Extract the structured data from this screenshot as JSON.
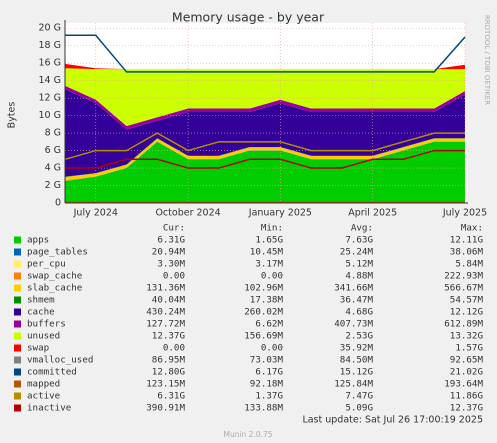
{
  "chart_data": {
    "type": "area",
    "title": "Memory usage - by year",
    "ylabel": "Bytes",
    "watermark": "RRDTOOL / TOBI OETIKER",
    "categories": [
      null,
      "July 2024",
      null,
      null,
      "October 2024",
      null,
      null,
      "January 2025",
      null,
      null,
      "April 2025",
      null,
      null,
      "July 2025"
    ],
    "ylim": [
      0,
      20.6
    ],
    "yticks": [
      0,
      {
        "value": 2,
        "label": "2 G"
      },
      {
        "value": 4,
        "label": "4 G"
      },
      {
        "value": 6,
        "label": "6 G"
      },
      {
        "value": 8,
        "label": "8 G"
      },
      {
        "value": 10,
        "label": "10 G"
      },
      {
        "value": 12,
        "label": "12 G"
      },
      {
        "value": 14,
        "label": "14 G"
      },
      {
        "value": 16,
        "label": "16 G"
      },
      {
        "value": 18,
        "label": "18 G"
      },
      {
        "value": 20,
        "label": "20 G"
      }
    ],
    "grid": true,
    "legend_columns": [
      "Cur:",
      "Min:",
      "Avg:",
      "Max:"
    ],
    "series": [
      {
        "name": "apps",
        "color": "#00cc00",
        "style": "area",
        "values": [
          2.5,
          3,
          4,
          7,
          5,
          5,
          6,
          6,
          5,
          5,
          5,
          6,
          7,
          7
        ],
        "stats": [
          "6.31G",
          "1.65G",
          "7.63G",
          "12.11G"
        ]
      },
      {
        "name": "page_tables",
        "color": "#0066b3",
        "style": "area",
        "values": [
          0.02,
          0.02,
          0.02,
          0.02,
          0.02,
          0.02,
          0.02,
          0.02,
          0.02,
          0.02,
          0.02,
          0.02,
          0.02,
          0.02
        ],
        "stats": [
          "20.94M",
          "10.45M",
          "25.24M",
          "38.06M"
        ]
      },
      {
        "name": "per_cpu",
        "color": "#ffee66",
        "style": "area",
        "values": [
          0.005,
          0.005,
          0.005,
          0.005,
          0.005,
          0.005,
          0.005,
          0.005,
          0.005,
          0.005,
          0.005,
          0.005,
          0.005,
          0.005
        ],
        "stats": [
          "3.30M",
          "3.17M",
          "5.12M",
          "5.84M"
        ]
      },
      {
        "name": "swap_cache",
        "color": "#ff8000",
        "style": "area",
        "values": [
          0.1,
          0.01,
          0,
          0,
          0,
          0,
          0,
          0,
          0,
          0,
          0,
          0,
          0,
          0
        ],
        "stats": [
          "0.00",
          "0.00",
          "4.88M",
          "222.93M"
        ]
      },
      {
        "name": "slab_cache",
        "color": "#ffcc00",
        "style": "area",
        "values": [
          0.35,
          0.35,
          0.35,
          0.35,
          0.35,
          0.35,
          0.35,
          0.35,
          0.35,
          0.35,
          0.35,
          0.35,
          0.35,
          0.35
        ],
        "stats": [
          "131.36M",
          "102.96M",
          "341.66M",
          "566.67M"
        ]
      },
      {
        "name": "shmem",
        "color": "#008f00",
        "style": "area",
        "values": [
          0.04,
          0.04,
          0.04,
          0.04,
          0.04,
          0.04,
          0.04,
          0.04,
          0.04,
          0.04,
          0.04,
          0.04,
          0.04,
          0.04
        ],
        "stats": [
          "40.04M",
          "17.38M",
          "36.47M",
          "54.57M"
        ]
      },
      {
        "name": "cache",
        "color": "#330099",
        "style": "area",
        "values": [
          10,
          8,
          4,
          2,
          5,
          5,
          4,
          5,
          5,
          5,
          5,
          4,
          3,
          5
        ],
        "stats": [
          "430.24M",
          "260.02M",
          "4.68G",
          "12.12G"
        ]
      },
      {
        "name": "buffers",
        "color": "#990099",
        "style": "area",
        "values": [
          0.4,
          0.4,
          0.4,
          0.4,
          0.4,
          0.4,
          0.4,
          0.4,
          0.4,
          0.4,
          0.4,
          0.4,
          0.4,
          0.4
        ],
        "stats": [
          "127.72M",
          "6.62M",
          "407.73M",
          "612.89M"
        ]
      },
      {
        "name": "unused",
        "color": "#ccff00",
        "style": "area",
        "values": [
          2,
          3.5,
          6.5,
          5.5,
          4.5,
          4.5,
          4.5,
          3.5,
          4.5,
          4.5,
          4.5,
          4.5,
          4.5,
          2.5
        ],
        "stats": [
          "12.37G",
          "156.69M",
          "2.53G",
          "13.32G"
        ]
      },
      {
        "name": "swap",
        "color": "#ff0000",
        "style": "area",
        "values": [
          0.5,
          0.1,
          0,
          0,
          0,
          0,
          0,
          0,
          0,
          0,
          0,
          0,
          0,
          0.5
        ],
        "stats": [
          "0.00",
          "0.00",
          "35.92M",
          "1.57G"
        ]
      },
      {
        "name": "vmalloc_used",
        "color": "#808080",
        "style": "line",
        "values": [
          0.085,
          0.085,
          0.085,
          0.085,
          0.085,
          0.085,
          0.085,
          0.085,
          0.085,
          0.085,
          0.085,
          0.085,
          0.085,
          0.085
        ],
        "stats": [
          "86.95M",
          "73.03M",
          "84.50M",
          "92.65M"
        ]
      },
      {
        "name": "committed",
        "color": "#00487d",
        "style": "line",
        "values": [
          19.2,
          19.2,
          15,
          15,
          15,
          15,
          15,
          15,
          15,
          15,
          15,
          15,
          15,
          19
        ],
        "stats": [
          "12.80G",
          "6.17G",
          "15.12G",
          "21.02G"
        ]
      },
      {
        "name": "mapped",
        "color": "#b35a00",
        "style": "line",
        "values": [
          0.12,
          0.12,
          0.12,
          0.12,
          0.12,
          0.12,
          0.12,
          0.12,
          0.12,
          0.12,
          0.12,
          0.12,
          0.12,
          0.12
        ],
        "stats": [
          "123.15M",
          "92.18M",
          "125.84M",
          "193.64M"
        ]
      },
      {
        "name": "active",
        "color": "#b38f00",
        "style": "line",
        "values": [
          5,
          6,
          6,
          8,
          6,
          7,
          7,
          7,
          6,
          6,
          6,
          7,
          8,
          8
        ],
        "stats": [
          "6.31G",
          "1.37G",
          "7.47G",
          "11.86G"
        ]
      },
      {
        "name": "inactive",
        "color": "#b30000",
        "style": "line",
        "values": [
          4,
          4,
          5,
          5,
          4,
          4,
          5,
          5,
          4,
          4,
          5,
          5,
          6,
          6
        ],
        "stats": [
          "390.91M",
          "133.88M",
          "5.09G",
          "12.37G"
        ]
      }
    ],
    "last_update": "Last update: Sat Jul 26 17:00:19 2025",
    "credit": "Munin 2.0.75"
  }
}
